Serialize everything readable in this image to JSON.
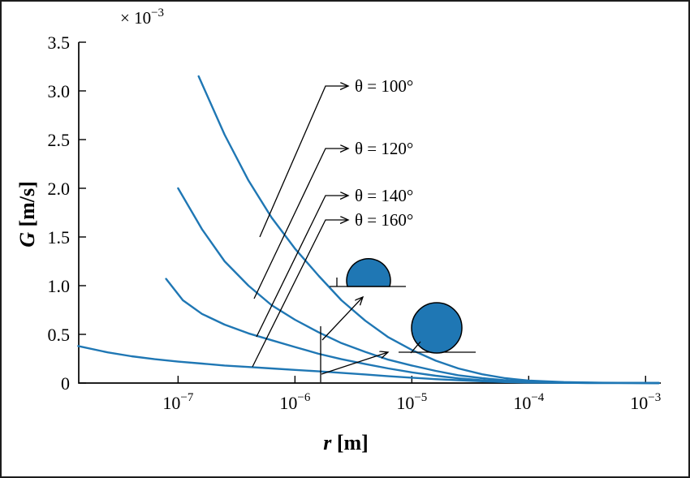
{
  "figure": {
    "background": "#ffffff",
    "frame_color": "#1c1c1c"
  },
  "chart_data": {
    "type": "line",
    "title": "",
    "x_axis": {
      "label_var": "r",
      "label_rest": " [m]",
      "scale": "log",
      "unit": "m",
      "tick_exponents": [
        -7,
        -6,
        -5,
        -4,
        -3
      ],
      "tick_labels": [
        "10⁻⁷",
        "10⁻⁶",
        "10⁻⁵",
        "10⁻⁴",
        "10⁻³"
      ],
      "range_exponents": [
        -7.85,
        -2.87
      ]
    },
    "y_axis": {
      "label_var": "G",
      "label_rest": " [m/s]",
      "multiplier_base": "× 10",
      "multiplier_exponent": "−3",
      "unit": "10⁻³ m/s",
      "tick_values": [
        0,
        0.5,
        1,
        1.5,
        2,
        2.5,
        3,
        3.5
      ],
      "tick_labels": [
        "0",
        "0.5",
        "1.0",
        "1.5",
        "2.0",
        "2.5",
        "3.0",
        "3.5"
      ],
      "range": [
        0,
        3.5
      ],
      "grid": false
    },
    "colors": {
      "curve": "#1f77b4",
      "droplet_fill": "#1f77b4",
      "axis": "#000000"
    },
    "series": [
      {
        "name": "θ = 100°",
        "points": [
          [
            1.5e-07,
            3.15
          ],
          [
            2.5e-07,
            2.55
          ],
          [
            4e-07,
            2.08
          ],
          [
            6.3e-07,
            1.7
          ],
          [
            1e-06,
            1.38
          ],
          [
            1.6e-06,
            1.1
          ],
          [
            2.5e-06,
            0.85
          ],
          [
            4e-06,
            0.64
          ],
          [
            6.3e-06,
            0.47
          ],
          [
            1e-05,
            0.34
          ],
          [
            1.6e-05,
            0.23
          ],
          [
            2.5e-05,
            0.15
          ],
          [
            4e-05,
            0.09
          ],
          [
            6.3e-05,
            0.05
          ],
          [
            0.0001,
            0.025
          ],
          [
            0.0002,
            0.01
          ],
          [
            0.0004,
            0.003
          ],
          [
            0.0013,
            0.0
          ]
        ]
      },
      {
        "name": "θ = 120°",
        "points": [
          [
            1e-07,
            2.0
          ],
          [
            1.6e-07,
            1.58
          ],
          [
            2.5e-07,
            1.25
          ],
          [
            4e-07,
            1.0
          ],
          [
            6.3e-07,
            0.8
          ],
          [
            1e-06,
            0.65
          ],
          [
            1.6e-06,
            0.52
          ],
          [
            2.5e-06,
            0.41
          ],
          [
            4e-06,
            0.32
          ],
          [
            6.3e-06,
            0.24
          ],
          [
            1e-05,
            0.18
          ],
          [
            1.6e-05,
            0.125
          ],
          [
            2.5e-05,
            0.08
          ],
          [
            4e-05,
            0.05
          ],
          [
            6.3e-05,
            0.028
          ],
          [
            0.0001,
            0.014
          ],
          [
            0.00032,
            0.003
          ],
          [
            0.0013,
            0.0
          ]
        ]
      },
      {
        "name": "θ = 140°",
        "points": [
          [
            7.9e-08,
            1.07
          ],
          [
            1.1e-07,
            0.85
          ],
          [
            1.6e-07,
            0.71
          ],
          [
            2.5e-07,
            0.6
          ],
          [
            4e-07,
            0.51
          ],
          [
            6.3e-07,
            0.44
          ],
          [
            1e-06,
            0.37
          ],
          [
            1.6e-06,
            0.3
          ],
          [
            2.5e-06,
            0.245
          ],
          [
            4e-06,
            0.195
          ],
          [
            6.3e-06,
            0.15
          ],
          [
            1e-05,
            0.11
          ],
          [
            1.6e-05,
            0.075
          ],
          [
            2.5e-05,
            0.048
          ],
          [
            4e-05,
            0.028
          ],
          [
            6.3e-05,
            0.015
          ],
          [
            0.0001,
            0.007
          ],
          [
            0.00032,
            0.001
          ],
          [
            0.0013,
            0.0
          ]
        ]
      },
      {
        "name": "θ = 160°",
        "points": [
          [
            1.4e-08,
            0.38
          ],
          [
            2.5e-08,
            0.315
          ],
          [
            4e-08,
            0.275
          ],
          [
            6.3e-08,
            0.245
          ],
          [
            1e-07,
            0.22
          ],
          [
            1.6e-07,
            0.2
          ],
          [
            2.5e-07,
            0.18
          ],
          [
            4e-07,
            0.165
          ],
          [
            6.3e-07,
            0.15
          ],
          [
            1e-06,
            0.135
          ],
          [
            1.6e-06,
            0.12
          ],
          [
            2.5e-06,
            0.105
          ],
          [
            4e-06,
            0.088
          ],
          [
            6.3e-06,
            0.07
          ],
          [
            1e-05,
            0.055
          ],
          [
            1.6e-05,
            0.04
          ],
          [
            2.5e-05,
            0.028
          ],
          [
            4e-05,
            0.018
          ],
          [
            6.3e-05,
            0.01
          ],
          [
            0.0001,
            0.005
          ],
          [
            0.00032,
            0.001
          ],
          [
            0.0013,
            0.0
          ]
        ]
      }
    ],
    "annotations": [
      {
        "label": "θ = 100°"
      },
      {
        "label": "θ = 120°"
      },
      {
        "label": "θ = 140°"
      },
      {
        "label": "θ = 160°"
      }
    ],
    "illustrations": [
      {
        "name": "sessile-droplet-low-contact-angle-icon"
      },
      {
        "name": "sessile-droplet-high-contact-angle-icon"
      }
    ]
  }
}
